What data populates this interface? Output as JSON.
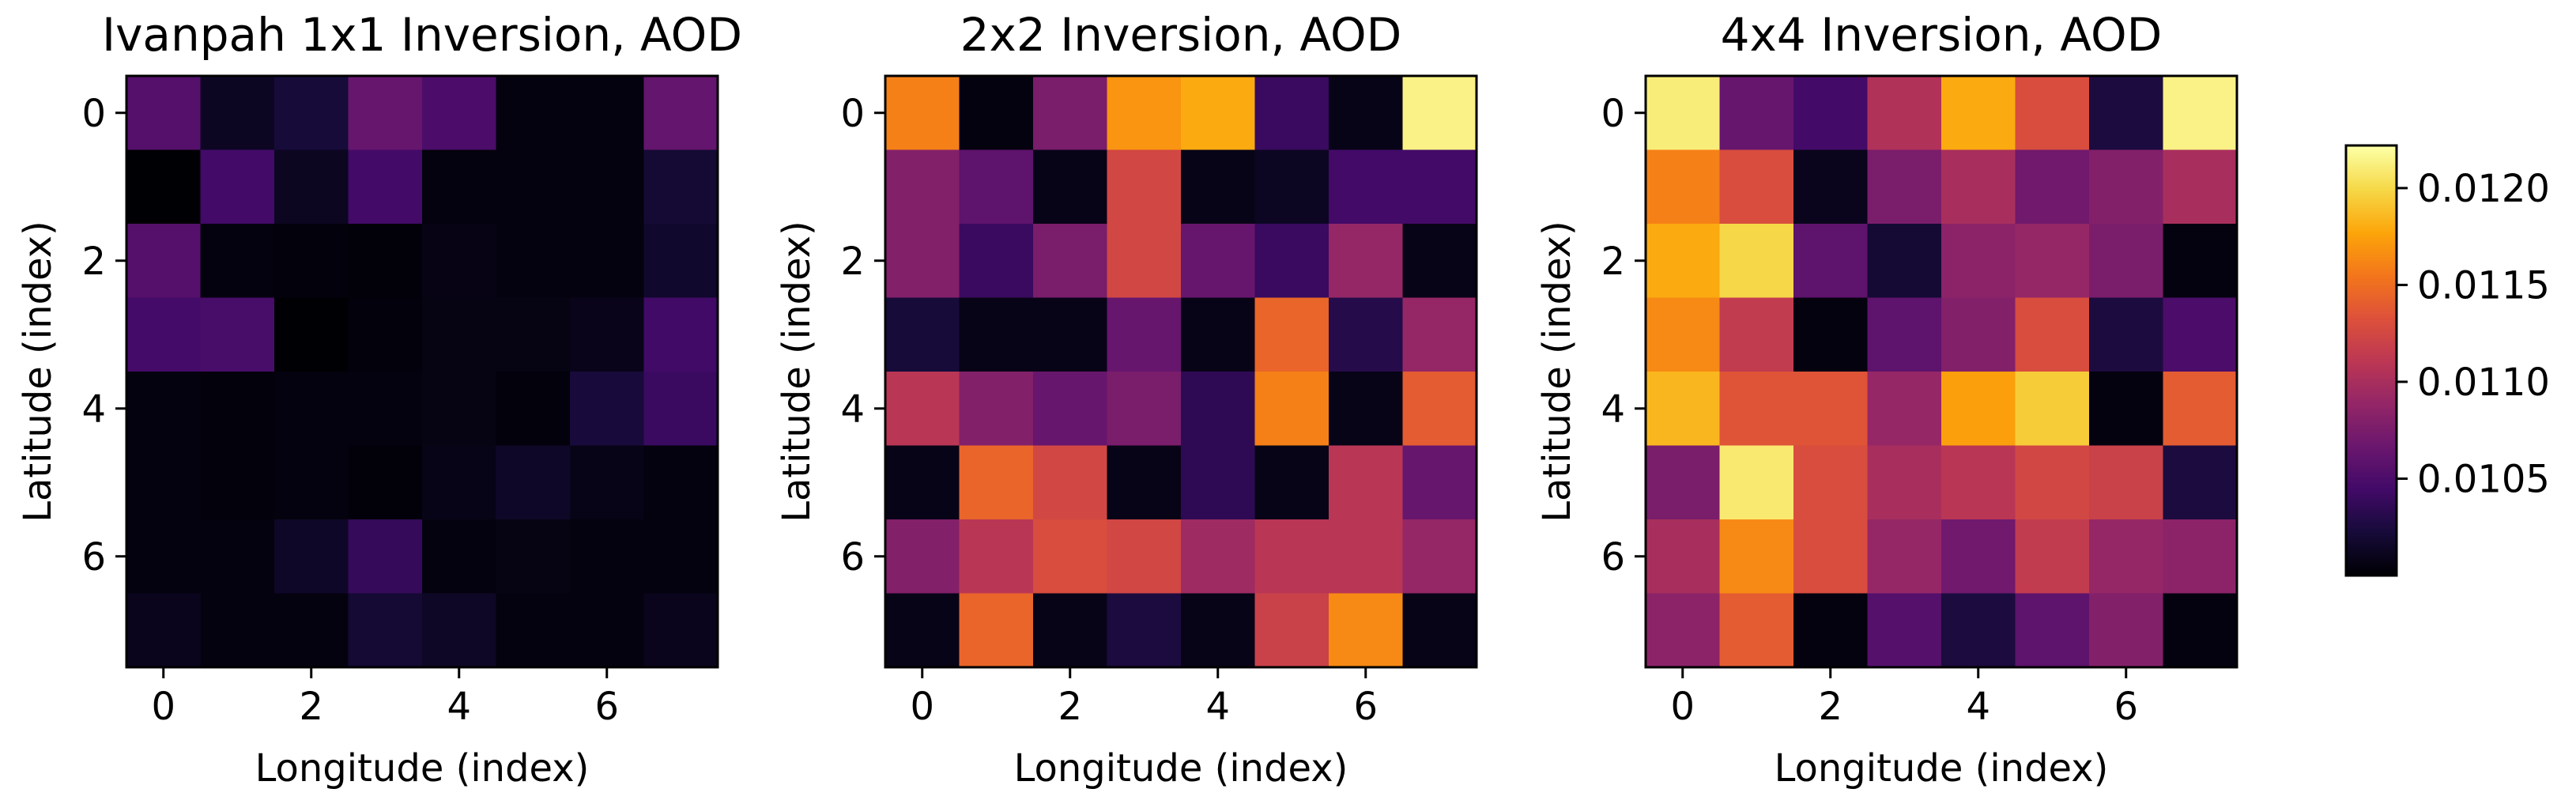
{
  "chart_data": [
    {
      "type": "heatmap",
      "title": "Ivanpah 1x1 Inversion, AOD",
      "xlabel": "Longitude (index)",
      "ylabel": "Latitude (index)",
      "x_ticks": [
        "0",
        "2",
        "4",
        "6"
      ],
      "y_ticks": [
        "0",
        "2",
        "4",
        "6"
      ],
      "x_range": [
        -0.5,
        7.5
      ],
      "y_range": [
        -0.5,
        7.5
      ],
      "values": [
        [
          0.01055,
          0.01013,
          0.01022,
          0.01065,
          0.0105,
          0.01005,
          0.01004,
          0.01063
        ],
        [
          0.01,
          0.01045,
          0.01012,
          0.01045,
          0.01004,
          0.01004,
          0.01004,
          0.0102
        ],
        [
          0.01055,
          0.01005,
          0.01003,
          0.01002,
          0.01007,
          0.01005,
          0.01004,
          0.01017
        ],
        [
          0.01046,
          0.01048,
          0.01,
          0.01003,
          0.01006,
          0.01006,
          0.01009,
          0.01044
        ],
        [
          0.01004,
          0.01003,
          0.01004,
          0.01004,
          0.01006,
          0.01003,
          0.01023,
          0.0104
        ],
        [
          0.01004,
          0.01003,
          0.01004,
          0.01002,
          0.01008,
          0.01015,
          0.01008,
          0.01004
        ],
        [
          0.01004,
          0.01004,
          0.01015,
          0.01038,
          0.01005,
          0.01006,
          0.01004,
          0.01004
        ],
        [
          0.0101,
          0.01005,
          0.01005,
          0.0102,
          0.01014,
          0.01005,
          0.01005,
          0.0101
        ]
      ]
    },
    {
      "type": "heatmap",
      "title": "2x2 Inversion, AOD",
      "xlabel": "Longitude (index)",
      "ylabel": "Latitude (index)",
      "x_ticks": [
        "0",
        "2",
        "4",
        "6"
      ],
      "y_ticks": [
        "0",
        "2",
        "4",
        "6"
      ],
      "x_range": [
        -0.5,
        7.5
      ],
      "y_range": [
        -0.5,
        7.5
      ],
      "values": [
        [
          0.0116,
          0.01005,
          0.01075,
          0.0117,
          0.0118,
          0.0104,
          0.01008,
          0.01215
        ],
        [
          0.0108,
          0.0106,
          0.01008,
          0.01125,
          0.01008,
          0.01013,
          0.01045,
          0.01045
        ],
        [
          0.0108,
          0.0104,
          0.01075,
          0.01125,
          0.01065,
          0.0104,
          0.0109,
          0.01008
        ],
        [
          0.01022,
          0.01008,
          0.01008,
          0.01065,
          0.01008,
          0.01145,
          0.0103,
          0.0109
        ],
        [
          0.0111,
          0.0108,
          0.01065,
          0.01075,
          0.01035,
          0.0116,
          0.01008,
          0.0114
        ],
        [
          0.01008,
          0.01145,
          0.01125,
          0.01008,
          0.01035,
          0.01008,
          0.0111,
          0.01065
        ],
        [
          0.0108,
          0.0111,
          0.0113,
          0.01125,
          0.01095,
          0.0111,
          0.0111,
          0.0109
        ],
        [
          0.01008,
          0.01145,
          0.01008,
          0.01025,
          0.01008,
          0.0112,
          0.01165,
          0.01008
        ]
      ]
    },
    {
      "type": "heatmap",
      "title": "4x4 Inversion, AOD",
      "xlabel": "Longitude (index)",
      "ylabel": "Latitude (index)",
      "x_ticks": [
        "0",
        "2",
        "4",
        "6"
      ],
      "y_ticks": [
        "0",
        "2",
        "4",
        "6"
      ],
      "x_range": [
        -0.5,
        7.5
      ],
      "y_range": [
        -0.5,
        7.5
      ],
      "values": [
        [
          0.01212,
          0.01065,
          0.01045,
          0.01105,
          0.0118,
          0.0113,
          0.01025,
          0.01215
        ],
        [
          0.0116,
          0.0113,
          0.0101,
          0.01075,
          0.011,
          0.0107,
          0.0108,
          0.011
        ],
        [
          0.0118,
          0.012,
          0.0106,
          0.0102,
          0.01085,
          0.0109,
          0.01075,
          0.01005
        ],
        [
          0.01165,
          0.01115,
          0.01005,
          0.0106,
          0.0108,
          0.0113,
          0.01025,
          0.0105
        ],
        [
          0.01185,
          0.01135,
          0.01135,
          0.0109,
          0.01175,
          0.01195,
          0.01005,
          0.0114
        ],
        [
          0.01075,
          0.0121,
          0.0113,
          0.011,
          0.0111,
          0.01125,
          0.0112,
          0.01025
        ],
        [
          0.011,
          0.01165,
          0.0113,
          0.0109,
          0.0107,
          0.01115,
          0.0109,
          0.01085
        ],
        [
          0.01085,
          0.0114,
          0.01005,
          0.01055,
          0.01025,
          0.0106,
          0.0108,
          0.01005
        ]
      ]
    }
  ],
  "colorbar": {
    "colormap": "inferno",
    "vmin": 0.01,
    "vmax": 0.01222,
    "ticks": [
      0.0105,
      0.011,
      0.0115,
      0.012
    ],
    "tick_labels": [
      "0.0105",
      "0.0110",
      "0.0115",
      "0.0120"
    ]
  }
}
